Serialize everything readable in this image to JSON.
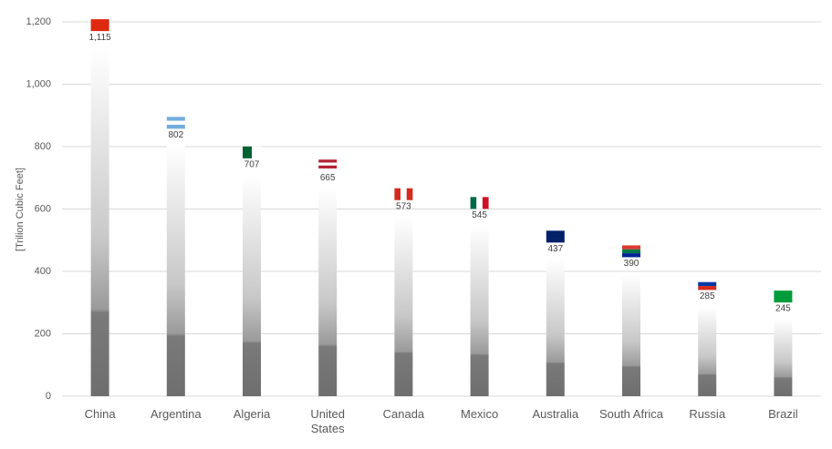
{
  "chart_data": {
    "type": "bar",
    "y_label": "[Trilion Cubic Feet]",
    "categories": [
      "China",
      "Argentina",
      "Algeria",
      "United States",
      "Canada",
      "Mexico",
      "Australia",
      "South Africa",
      "Russia",
      "Brazil"
    ],
    "values": [
      1115,
      802,
      707,
      665,
      573,
      545,
      437,
      390,
      285,
      245
    ],
    "value_labels": [
      "1,115",
      "802",
      "707",
      "665",
      "573",
      "545",
      "437",
      "390",
      "285",
      "245"
    ],
    "ylim": [
      0,
      1200
    ],
    "yticks": [
      0,
      200,
      400,
      600,
      800,
      {
        "value": 1000,
        "label": "1,000"
      },
      {
        "value": 1200,
        "label": "1,200"
      }
    ],
    "grid": true
  }
}
